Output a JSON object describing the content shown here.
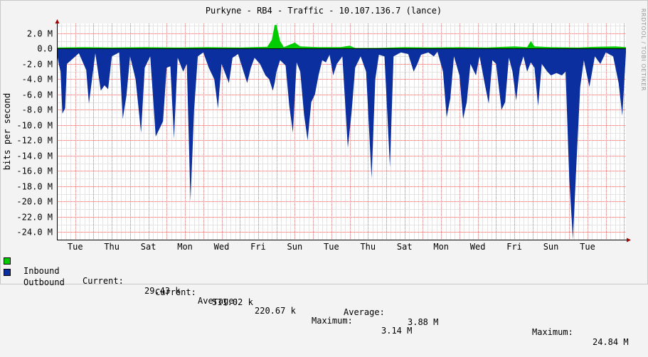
{
  "chart_data": {
    "type": "area",
    "title": "Purkyne - RB4 - Traffic - 10.107.136.7 (lance)",
    "ylabel": "bits per second",
    "watermark": "RRDTOOL / TOBI OETIKER",
    "ylim": [
      -25000000,
      3300000
    ],
    "yticks": [
      2000000,
      0,
      -2000000,
      -4000000,
      -6000000,
      -8000000,
      -10000000,
      -12000000,
      -14000000,
      -16000000,
      -18000000,
      -20000000,
      -22000000,
      -24000000
    ],
    "ytick_labels": [
      "2.0 M",
      "0.0",
      "-2.0 M",
      "-4.0 M",
      "-6.0 M",
      "-8.0 M",
      "-10.0 M",
      "-12.0 M",
      "-14.0 M",
      "-16.0 M",
      "-18.0 M",
      "-20.0 M",
      "-22.0 M",
      "-24.0 M"
    ],
    "x_day_labels": [
      "Tue",
      "Thu",
      "Sat",
      "Mon",
      "Wed",
      "Fri",
      "Sun",
      "Tue",
      "Thu",
      "Sat",
      "Mon",
      "Wed",
      "Fri",
      "Sun",
      "Tue"
    ],
    "x_range_days": [
      0,
      31.1
    ],
    "x_first_label_day": 1,
    "x_label_step_days": 2,
    "grid": true,
    "legend": "bottom",
    "colors": {
      "inbound": "#00cc00",
      "outbound": "#0b2f9f",
      "grid_major": "#f08080",
      "grid_minor": "#e8e8e8",
      "axis": "#a00000"
    },
    "series": [
      {
        "name": "Inbound",
        "units": "Mbps",
        "points": [
          [
            0.0,
            0.15
          ],
          [
            1.5,
            0.2
          ],
          [
            3.0,
            0.15
          ],
          [
            4.8,
            0.2
          ],
          [
            6.5,
            0.15
          ],
          [
            8.2,
            0.2
          ],
          [
            10.0,
            0.15
          ],
          [
            11.5,
            0.25
          ],
          [
            11.75,
            1.2
          ],
          [
            11.9,
            3.1
          ],
          [
            12.0,
            3.1
          ],
          [
            12.2,
            1.0
          ],
          [
            12.4,
            0.2
          ],
          [
            13.0,
            0.8
          ],
          [
            13.3,
            0.3
          ],
          [
            14.3,
            0.2
          ],
          [
            15.5,
            0.2
          ],
          [
            16.0,
            0.4
          ],
          [
            16.3,
            0.1
          ],
          [
            17.5,
            0.1
          ],
          [
            19.0,
            0.2
          ],
          [
            20.5,
            0.15
          ],
          [
            22.0,
            0.2
          ],
          [
            23.5,
            0.15
          ],
          [
            25.0,
            0.3
          ],
          [
            25.7,
            0.2
          ],
          [
            25.9,
            1.0
          ],
          [
            26.1,
            0.3
          ],
          [
            27.0,
            0.2
          ],
          [
            28.5,
            0.15
          ],
          [
            29.5,
            0.25
          ],
          [
            30.5,
            0.3
          ],
          [
            31.1,
            0.2
          ]
        ]
      },
      {
        "name": "Outbound",
        "units": "Mbps",
        "points": [
          [
            0.0,
            -0.6
          ],
          [
            0.1,
            -2.0
          ],
          [
            0.2,
            -3.0
          ],
          [
            0.3,
            -8.5
          ],
          [
            0.45,
            -7.8
          ],
          [
            0.55,
            -2.0
          ],
          [
            1.2,
            -0.6
          ],
          [
            1.6,
            -2.8
          ],
          [
            1.75,
            -7.2
          ],
          [
            2.1,
            -0.6
          ],
          [
            2.4,
            -5.5
          ],
          [
            2.6,
            -4.8
          ],
          [
            2.8,
            -5.3
          ],
          [
            3.0,
            -1.0
          ],
          [
            3.4,
            -0.5
          ],
          [
            3.6,
            -9.2
          ],
          [
            3.8,
            -6.2
          ],
          [
            4.0,
            -1.0
          ],
          [
            4.3,
            -4.0
          ],
          [
            4.6,
            -11.0
          ],
          [
            4.8,
            -2.5
          ],
          [
            5.1,
            -1.0
          ],
          [
            5.4,
            -11.5
          ],
          [
            5.6,
            -10.5
          ],
          [
            5.8,
            -9.5
          ],
          [
            6.0,
            -2.5
          ],
          [
            6.2,
            -2.3
          ],
          [
            6.4,
            -11.8
          ],
          [
            6.6,
            -1.2
          ],
          [
            6.9,
            -3.0
          ],
          [
            7.1,
            -2.0
          ],
          [
            7.3,
            -20.0
          ],
          [
            7.5,
            -8.0
          ],
          [
            7.7,
            -1.0
          ],
          [
            8.0,
            -0.5
          ],
          [
            8.3,
            -2.5
          ],
          [
            8.6,
            -4.0
          ],
          [
            8.8,
            -7.8
          ],
          [
            9.0,
            -2.0
          ],
          [
            9.4,
            -4.5
          ],
          [
            9.6,
            -1.2
          ],
          [
            9.9,
            -0.7
          ],
          [
            10.2,
            -3.0
          ],
          [
            10.4,
            -4.5
          ],
          [
            10.6,
            -2.5
          ],
          [
            10.8,
            -1.2
          ],
          [
            11.1,
            -2.0
          ],
          [
            11.4,
            -3.5
          ],
          [
            11.6,
            -4.0
          ],
          [
            11.8,
            -5.5
          ],
          [
            11.9,
            -4.5
          ],
          [
            12.0,
            -3.0
          ],
          [
            12.2,
            -1.5
          ],
          [
            12.5,
            -2.2
          ],
          [
            12.7,
            -7.5
          ],
          [
            12.9,
            -11.0
          ],
          [
            13.1,
            -1.8
          ],
          [
            13.3,
            -3.0
          ],
          [
            13.5,
            -8.5
          ],
          [
            13.7,
            -12.0
          ],
          [
            13.9,
            -7.0
          ],
          [
            14.1,
            -6.0
          ],
          [
            14.3,
            -3.5
          ],
          [
            14.5,
            -1.5
          ],
          [
            14.7,
            -1.8
          ],
          [
            14.9,
            -0.8
          ],
          [
            15.1,
            -3.5
          ],
          [
            15.3,
            -2.0
          ],
          [
            15.6,
            -1.0
          ],
          [
            15.9,
            -13.0
          ],
          [
            16.1,
            -8.5
          ],
          [
            16.3,
            -2.5
          ],
          [
            16.6,
            -1.0
          ],
          [
            16.9,
            -3.0
          ],
          [
            17.2,
            -17.0
          ],
          [
            17.4,
            -4.0
          ],
          [
            17.6,
            -0.8
          ],
          [
            17.9,
            -1.0
          ],
          [
            18.2,
            -15.5
          ],
          [
            18.4,
            -1.0
          ],
          [
            18.8,
            -0.5
          ],
          [
            19.2,
            -0.7
          ],
          [
            19.5,
            -3.0
          ],
          [
            19.7,
            -2.0
          ],
          [
            19.9,
            -0.8
          ],
          [
            20.3,
            -0.5
          ],
          [
            20.6,
            -1.0
          ],
          [
            20.8,
            -0.4
          ],
          [
            21.1,
            -3.0
          ],
          [
            21.3,
            -9.0
          ],
          [
            21.5,
            -6.5
          ],
          [
            21.7,
            -1.0
          ],
          [
            22.0,
            -3.5
          ],
          [
            22.2,
            -9.2
          ],
          [
            22.4,
            -7.0
          ],
          [
            22.6,
            -2.0
          ],
          [
            22.9,
            -3.5
          ],
          [
            23.1,
            -1.0
          ],
          [
            23.4,
            -4.8
          ],
          [
            23.6,
            -7.2
          ],
          [
            23.8,
            -1.5
          ],
          [
            24.0,
            -2.0
          ],
          [
            24.3,
            -8.0
          ],
          [
            24.5,
            -7.0
          ],
          [
            24.7,
            -1.2
          ],
          [
            24.9,
            -3.0
          ],
          [
            25.1,
            -6.8
          ],
          [
            25.3,
            -2.5
          ],
          [
            25.5,
            -1.0
          ],
          [
            25.7,
            -3.0
          ],
          [
            25.9,
            -1.8
          ],
          [
            26.1,
            -2.5
          ],
          [
            26.3,
            -7.5
          ],
          [
            26.5,
            -2.0
          ],
          [
            26.8,
            -3.0
          ],
          [
            27.0,
            -3.5
          ],
          [
            27.3,
            -3.2
          ],
          [
            27.6,
            -3.5
          ],
          [
            27.8,
            -3.0
          ],
          [
            28.0,
            -17.0
          ],
          [
            28.2,
            -25.0
          ],
          [
            28.4,
            -14.8
          ],
          [
            28.6,
            -5.0
          ],
          [
            28.8,
            -1.5
          ],
          [
            29.1,
            -5.0
          ],
          [
            29.4,
            -1.0
          ],
          [
            29.7,
            -2.0
          ],
          [
            30.0,
            -0.5
          ],
          [
            30.4,
            -1.0
          ],
          [
            30.7,
            -4.5
          ],
          [
            30.9,
            -8.8
          ],
          [
            31.1,
            -0.5
          ]
        ]
      }
    ]
  },
  "legend": {
    "rows": [
      {
        "name": "Inbound",
        "current_label": "Current:",
        "current_value": "29.43 k",
        "average_label": "Average:",
        "average_value": "220.67 k",
        "maximum_label": "Maximum:",
        "maximum_value": "3.14 M"
      },
      {
        "name": "Outbound",
        "current_label": "Current:",
        "current_value": "511.02 k",
        "average_label": "Average:",
        "average_value": "3.88 M",
        "maximum_label": "Maximum:",
        "maximum_value": "24.84 M"
      }
    ]
  }
}
